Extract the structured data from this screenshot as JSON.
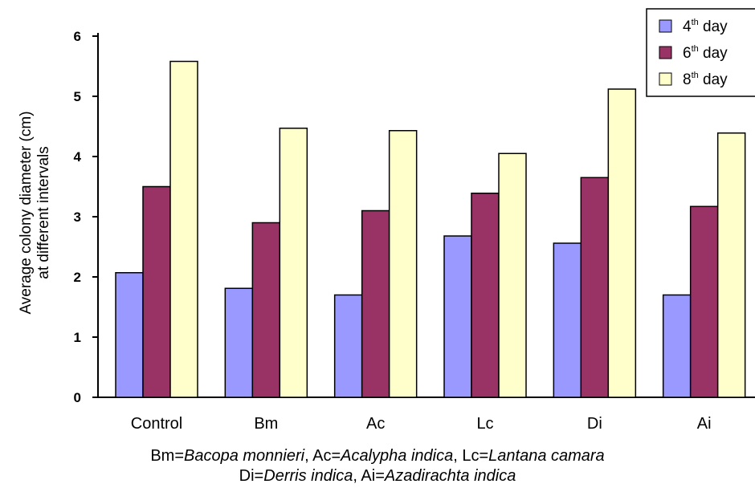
{
  "chart_data": {
    "type": "bar",
    "categories": [
      "Control",
      "Bm",
      "Ac",
      "Lc",
      "Di",
      "Ai"
    ],
    "series": [
      {
        "name_base": "4",
        "name_sup": "th",
        "name_suffix": " day",
        "color": "#9999ff",
        "values": [
          2.07,
          1.81,
          1.7,
          2.68,
          2.56,
          1.7
        ]
      },
      {
        "name_base": "6",
        "name_sup": "th",
        "name_suffix": " day",
        "color": "#993366",
        "values": [
          3.5,
          2.9,
          3.1,
          3.39,
          3.65,
          3.17
        ]
      },
      {
        "name_base": "8",
        "name_sup": "th",
        "name_suffix": " day",
        "color": "#ffffcc",
        "values": [
          5.58,
          4.47,
          4.43,
          4.05,
          5.12,
          4.39
        ]
      }
    ],
    "ylabel_line1": "Average colony diameter (cm)",
    "ylabel_line2": "at different intervals",
    "xlabel": "",
    "ylim": [
      0,
      6
    ],
    "yticks": [
      0,
      1,
      2,
      3,
      4,
      5,
      6
    ],
    "grid": false,
    "legend_position": "top-right"
  },
  "caption": {
    "line1": [
      {
        "text": "Bm=",
        "italic": false
      },
      {
        "text": "Bacopa monnieri",
        "italic": true
      },
      {
        "text": ", Ac=",
        "italic": false
      },
      {
        "text": "Acalypha indica",
        "italic": true
      },
      {
        "text": ", Lc=",
        "italic": false
      },
      {
        "text": "Lantana camara",
        "italic": true
      }
    ],
    "line2": [
      {
        "text": "Di=",
        "italic": false
      },
      {
        "text": "Derris indica",
        "italic": true
      },
      {
        "text": ", Ai=",
        "italic": false
      },
      {
        "text": "Azadirachta indica",
        "italic": true
      }
    ]
  }
}
